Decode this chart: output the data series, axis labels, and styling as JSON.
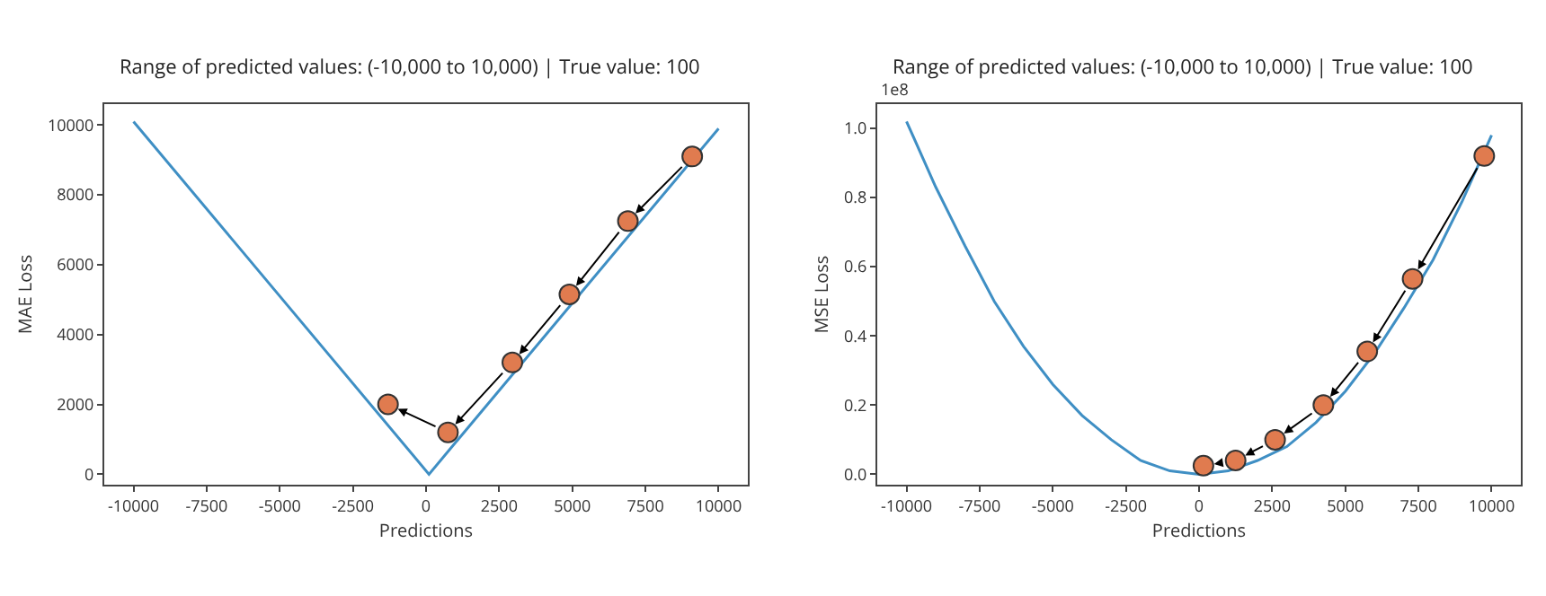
{
  "chart_data": [
    {
      "type": "line",
      "title": "Range of predicted values: (-10,000 to 10,000) | True value: 100",
      "xlabel": "Predictions",
      "ylabel": "MAE Loss",
      "xlim": [
        -11000,
        11000
      ],
      "xticks": [
        -10000,
        -7500,
        -5000,
        -2500,
        0,
        2500,
        5000,
        7500,
        10000
      ],
      "ylim": [
        -300,
        10600
      ],
      "yticks": [
        0,
        2000,
        4000,
        6000,
        8000,
        10000
      ],
      "grid": false,
      "series": [
        {
          "color": "#3f8fc4",
          "x": [
            -10000,
            100,
            10000
          ],
          "values": [
            10100,
            0,
            9900
          ],
          "marker": "none"
        },
        {
          "type": "scatter",
          "color": "#e07b4f",
          "x": [
            9100,
            6900,
            4900,
            2950,
            750,
            -1300
          ],
          "values": [
            9100,
            7250,
            5150,
            3200,
            1200,
            2000
          ],
          "marker": "circle"
        }
      ]
    },
    {
      "type": "line",
      "title": "Range of predicted values: (-10,000 to 10,000) | True value: 100",
      "xlabel": "Predictions",
      "ylabel": "MSE Loss",
      "annotations": [
        "1e8"
      ],
      "xlim": [
        -11000,
        11000
      ],
      "xticks": [
        -10000,
        -7500,
        -5000,
        -2500,
        0,
        2500,
        5000,
        7500,
        10000
      ],
      "ylim": [
        -0.03,
        1.07
      ],
      "yticks": [
        {
          "value": 0,
          "label": "0.0"
        },
        {
          "value": 0.2,
          "label": "0.2"
        },
        {
          "value": 0.4,
          "label": "0.4"
        },
        {
          "value": 0.6,
          "label": "0.6"
        },
        {
          "value": 0.8,
          "label": "0.8"
        },
        {
          "value": 1,
          "label": "1.0"
        }
      ],
      "grid": false,
      "series": [
        {
          "color": "#3f8fc4",
          "x": [
            -10000,
            -9000,
            -8000,
            -7000,
            -6000,
            -5000,
            -4000,
            -3000,
            -2000,
            -1000,
            0,
            1000,
            2000,
            3000,
            4000,
            5000,
            6000,
            7000,
            8000,
            9000,
            10000
          ],
          "values": [
            1.02,
            0.83,
            0.66,
            0.5,
            0.37,
            0.26,
            0.17,
            0.1,
            0.04,
            0.01,
            0,
            0.01,
            0.04,
            0.08,
            0.15,
            0.24,
            0.35,
            0.48,
            0.62,
            0.79,
            0.98
          ],
          "marker": "none"
        },
        {
          "type": "scatter",
          "color": "#e07b4f",
          "x": [
            9750,
            7300,
            5750,
            4250,
            2600,
            1250,
            150
          ],
          "values": [
            0.92,
            0.565,
            0.355,
            0.2,
            0.1,
            0.04,
            0.025
          ],
          "marker": "circle"
        }
      ]
    }
  ]
}
